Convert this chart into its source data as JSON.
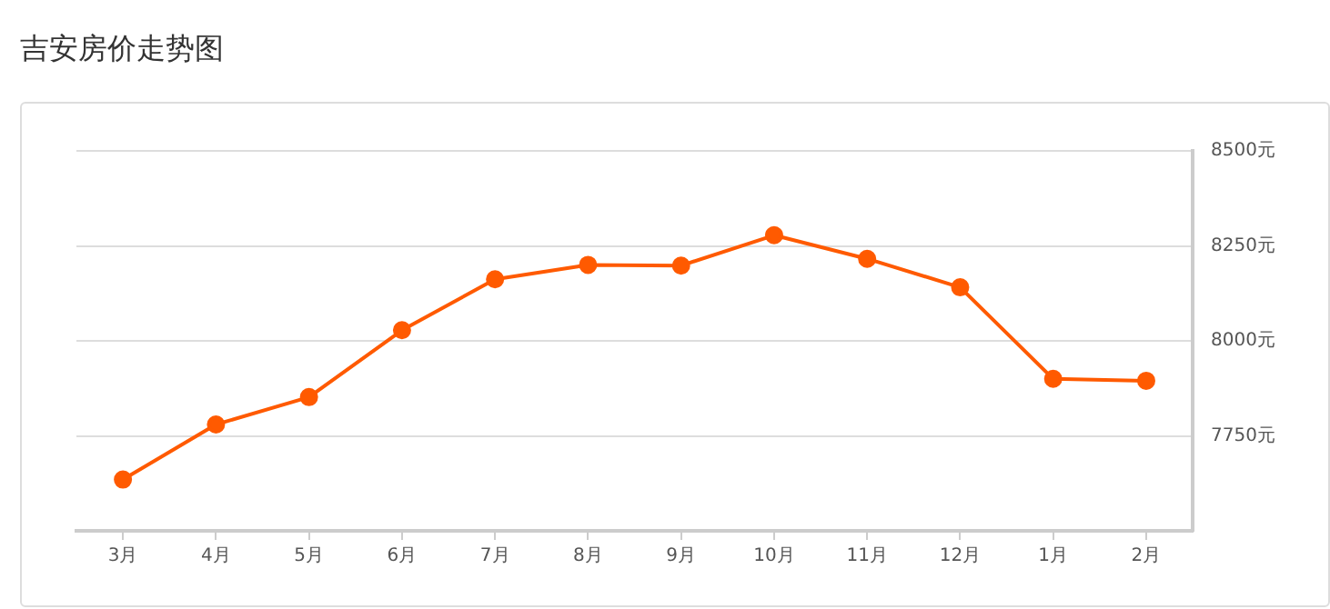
{
  "chart_data": {
    "type": "line",
    "title": "吉安房价走势图",
    "categories": [
      "3月",
      "4月",
      "5月",
      "6月",
      "7月",
      "8月",
      "9月",
      "10月",
      "11月",
      "12月",
      "1月",
      "2月"
    ],
    "series": [
      {
        "color": "#ff5a00",
        "values": [
          7635,
          7780,
          7852,
          8028,
          8162,
          8200,
          8198,
          8278,
          8216,
          8141,
          7900,
          7895
        ]
      }
    ],
    "ylim": [
      7500,
      8500
    ],
    "yticks": [
      {
        "value": 7750,
        "label": "7750元"
      },
      {
        "value": 8000,
        "label": "8000元"
      },
      {
        "value": 8250,
        "label": "8250元"
      },
      {
        "value": 8500,
        "label": "8500元"
      }
    ],
    "grid": "y",
    "legend": false,
    "marker": "circle",
    "line_style": "solid"
  }
}
